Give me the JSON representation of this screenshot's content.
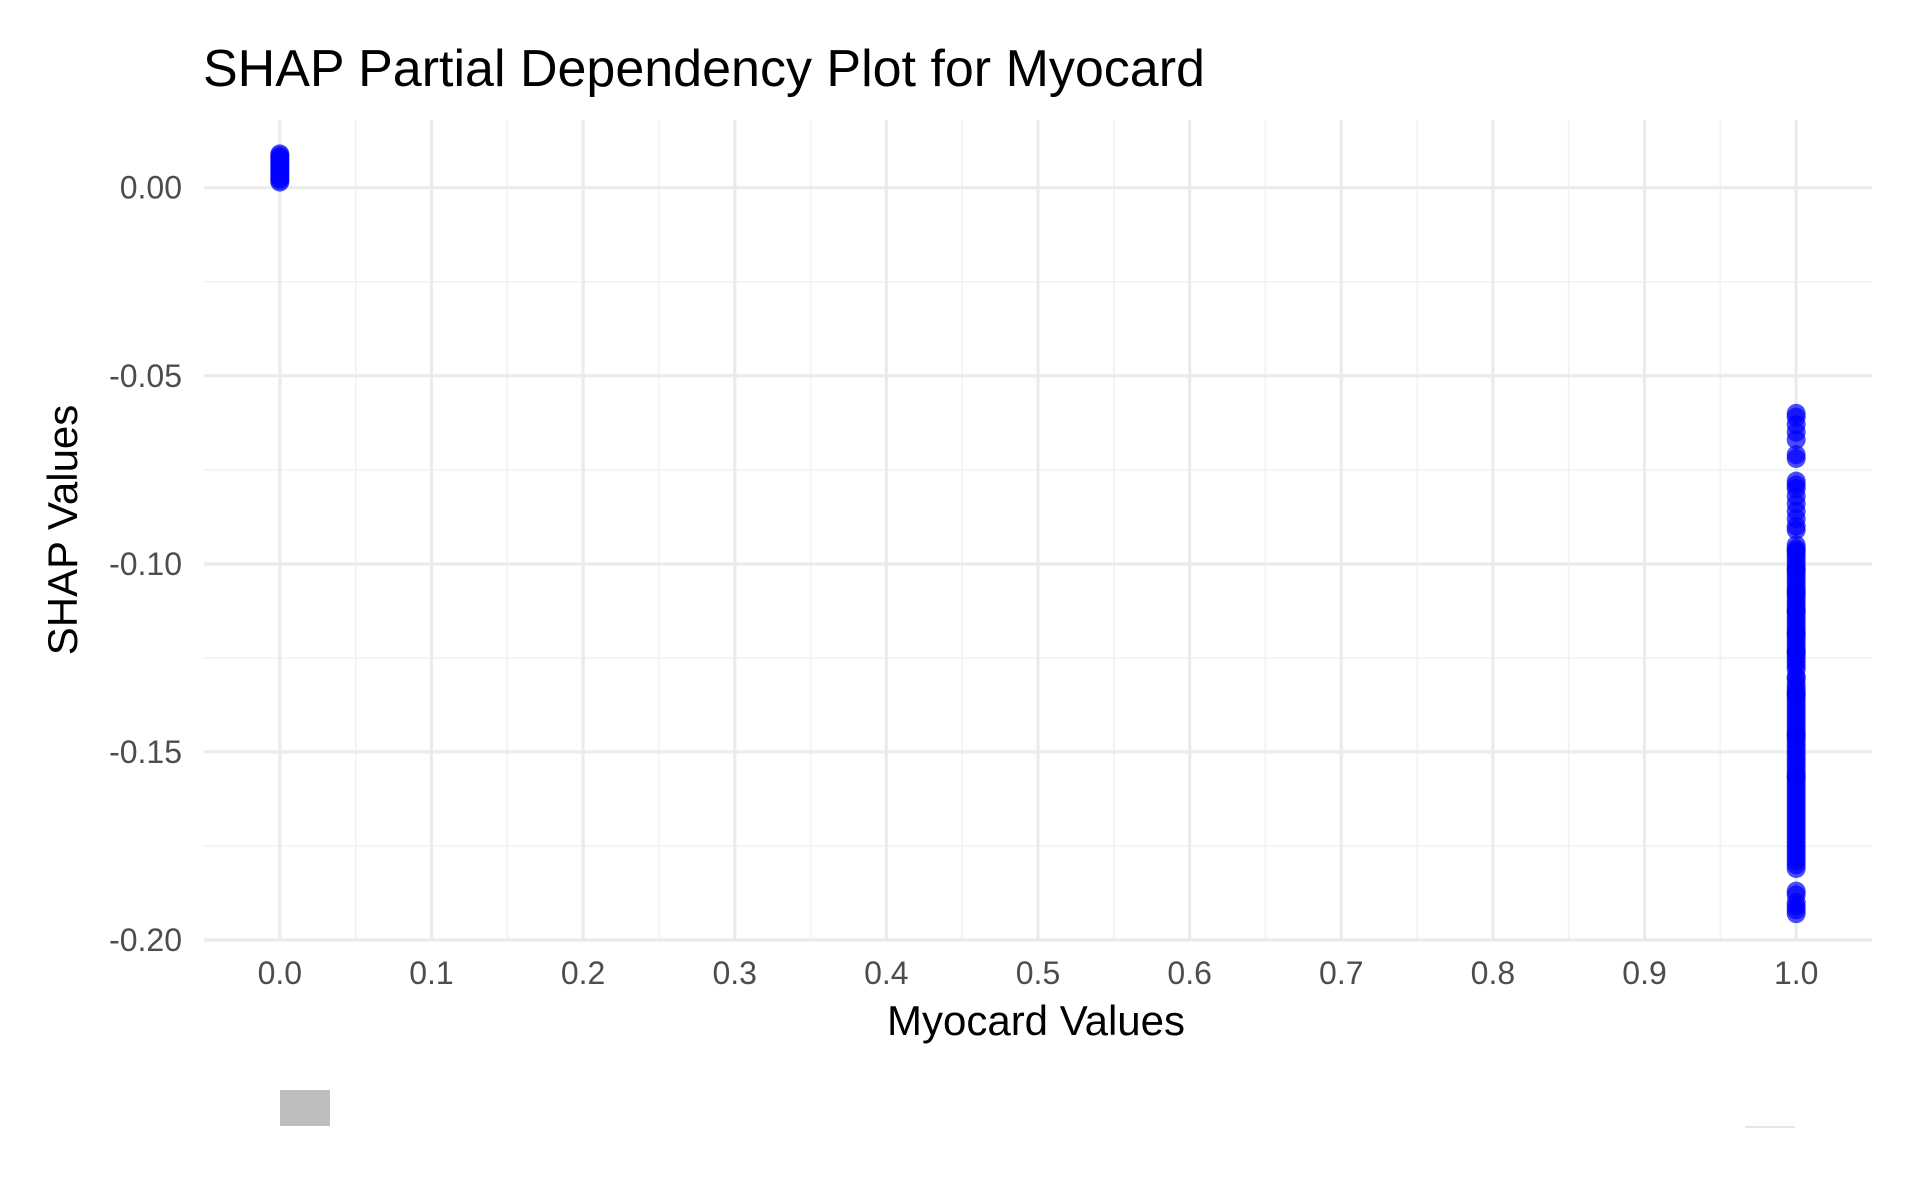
{
  "chart_data": {
    "type": "scatter",
    "title": "SHAP Partial Dependency Plot for Myocard",
    "xlabel": "Myocard Values",
    "ylabel": "SHAP Values",
    "xlim": [
      -0.05,
      1.05
    ],
    "ylim": [
      -0.2,
      0.018
    ],
    "x_ticks": [
      0.0,
      0.1,
      0.2,
      0.3,
      0.4,
      0.5,
      0.6,
      0.7,
      0.8,
      0.9,
      1.0
    ],
    "x_tick_labels": [
      "0.0",
      "0.1",
      "0.2",
      "0.3",
      "0.4",
      "0.5",
      "0.6",
      "0.7",
      "0.8",
      "0.9",
      "1.0"
    ],
    "y_ticks": [
      0.0,
      -0.05,
      -0.1,
      -0.15,
      -0.2
    ],
    "y_tick_labels": [
      "0.00",
      "-0.05",
      "-0.10",
      "-0.15",
      "-0.20"
    ],
    "grid": true,
    "legend": "none",
    "point_color": "#0000ff",
    "series": [
      {
        "x": [
          0,
          0,
          0,
          0,
          0,
          0,
          0,
          0,
          0,
          0,
          0,
          0,
          0,
          0,
          0,
          0
        ],
        "y": [
          0.009,
          0.0085,
          0.008,
          0.0075,
          0.007,
          0.0065,
          0.006,
          0.0055,
          0.005,
          0.0045,
          0.004,
          0.0035,
          0.003,
          0.0025,
          0.002,
          0.0015
        ]
      },
      {
        "x": [
          1,
          1,
          1,
          1,
          1,
          1,
          1,
          1,
          1,
          1,
          1,
          1,
          1,
          1,
          1,
          1,
          1,
          1,
          1,
          1,
          1,
          1,
          1,
          1,
          1,
          1,
          1,
          1,
          1,
          1,
          1,
          1,
          1,
          1,
          1,
          1,
          1,
          1,
          1,
          1,
          1,
          1,
          1,
          1,
          1,
          1,
          1,
          1,
          1,
          1,
          1,
          1,
          1,
          1,
          1,
          1,
          1,
          1,
          1,
          1,
          1,
          1,
          1,
          1,
          1,
          1,
          1,
          1,
          1,
          1,
          1,
          1,
          1,
          1,
          1,
          1,
          1,
          1,
          1,
          1,
          1,
          1,
          1,
          1,
          1,
          1,
          1,
          1,
          1,
          1,
          1,
          1,
          1,
          1,
          1,
          1,
          1,
          1,
          1,
          1,
          1,
          1,
          1,
          1,
          1,
          1,
          1,
          1,
          1,
          1,
          1,
          1,
          1,
          1,
          1,
          1,
          1
        ],
        "y": [
          -0.06,
          -0.061,
          -0.063,
          -0.065,
          -0.067,
          -0.071,
          -0.072,
          -0.078,
          -0.079,
          -0.08,
          -0.082,
          -0.084,
          -0.086,
          -0.088,
          -0.09,
          -0.091,
          -0.095,
          -0.096,
          -0.097,
          -0.098,
          -0.099,
          -0.1,
          -0.101,
          -0.102,
          -0.103,
          -0.104,
          -0.105,
          -0.106,
          -0.107,
          -0.108,
          -0.109,
          -0.11,
          -0.111,
          -0.112,
          -0.113,
          -0.114,
          -0.115,
          -0.116,
          -0.117,
          -0.118,
          -0.119,
          -0.12,
          -0.121,
          -0.122,
          -0.123,
          -0.124,
          -0.125,
          -0.126,
          -0.127,
          -0.128,
          -0.13,
          -0.132,
          -0.133,
          -0.134,
          -0.135,
          -0.136,
          -0.137,
          -0.138,
          -0.139,
          -0.14,
          -0.141,
          -0.142,
          -0.143,
          -0.144,
          -0.145,
          -0.146,
          -0.147,
          -0.148,
          -0.149,
          -0.15,
          -0.151,
          -0.152,
          -0.153,
          -0.154,
          -0.155,
          -0.156,
          -0.157,
          -0.158,
          -0.159,
          -0.16,
          -0.161,
          -0.162,
          -0.163,
          -0.164,
          -0.165,
          -0.166,
          -0.167,
          -0.168,
          -0.169,
          -0.17,
          -0.171,
          -0.172,
          -0.173,
          -0.174,
          -0.175,
          -0.176,
          -0.177,
          -0.178,
          -0.179,
          -0.18,
          -0.181,
          -0.187,
          -0.188,
          -0.19,
          -0.191,
          -0.192,
          -0.193,
          -0.1015,
          -0.1125,
          -0.1235,
          -0.1345,
          -0.1455,
          -0.1565,
          -0.1185,
          -0.1075,
          -0.0965,
          -0.1305
        ]
      }
    ]
  }
}
